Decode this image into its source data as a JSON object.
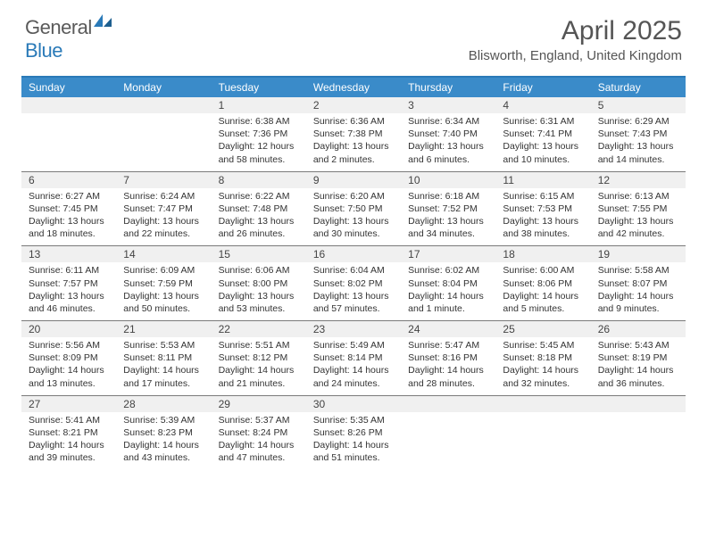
{
  "logo": {
    "word1": "General",
    "word2": "Blue"
  },
  "title": "April 2025",
  "location": "Blisworth, England, United Kingdom",
  "colors": {
    "header_bar": "#3a8bc9",
    "top_border": "#2a7ab8",
    "daynum_bg": "#f0f0f0",
    "week_divider": "#7a7a7a",
    "text": "#333333",
    "title_text": "#555555",
    "logo_gray": "#5a5a5a",
    "logo_blue": "#2a7ab8",
    "background": "#ffffff"
  },
  "typography": {
    "title_fontsize": 30,
    "location_fontsize": 15,
    "dayhead_fontsize": 12,
    "daynum_fontsize": 12,
    "body_fontsize": 10.5
  },
  "day_headers": [
    "Sunday",
    "Monday",
    "Tuesday",
    "Wednesday",
    "Thursday",
    "Friday",
    "Saturday"
  ],
  "weeks": [
    [
      null,
      null,
      {
        "n": "1",
        "sr": "6:38 AM",
        "ss": "7:36 PM",
        "dl": "12 hours and 58 minutes."
      },
      {
        "n": "2",
        "sr": "6:36 AM",
        "ss": "7:38 PM",
        "dl": "13 hours and 2 minutes."
      },
      {
        "n": "3",
        "sr": "6:34 AM",
        "ss": "7:40 PM",
        "dl": "13 hours and 6 minutes."
      },
      {
        "n": "4",
        "sr": "6:31 AM",
        "ss": "7:41 PM",
        "dl": "13 hours and 10 minutes."
      },
      {
        "n": "5",
        "sr": "6:29 AM",
        "ss": "7:43 PM",
        "dl": "13 hours and 14 minutes."
      }
    ],
    [
      {
        "n": "6",
        "sr": "6:27 AM",
        "ss": "7:45 PM",
        "dl": "13 hours and 18 minutes."
      },
      {
        "n": "7",
        "sr": "6:24 AM",
        "ss": "7:47 PM",
        "dl": "13 hours and 22 minutes."
      },
      {
        "n": "8",
        "sr": "6:22 AM",
        "ss": "7:48 PM",
        "dl": "13 hours and 26 minutes."
      },
      {
        "n": "9",
        "sr": "6:20 AM",
        "ss": "7:50 PM",
        "dl": "13 hours and 30 minutes."
      },
      {
        "n": "10",
        "sr": "6:18 AM",
        "ss": "7:52 PM",
        "dl": "13 hours and 34 minutes."
      },
      {
        "n": "11",
        "sr": "6:15 AM",
        "ss": "7:53 PM",
        "dl": "13 hours and 38 minutes."
      },
      {
        "n": "12",
        "sr": "6:13 AM",
        "ss": "7:55 PM",
        "dl": "13 hours and 42 minutes."
      }
    ],
    [
      {
        "n": "13",
        "sr": "6:11 AM",
        "ss": "7:57 PM",
        "dl": "13 hours and 46 minutes."
      },
      {
        "n": "14",
        "sr": "6:09 AM",
        "ss": "7:59 PM",
        "dl": "13 hours and 50 minutes."
      },
      {
        "n": "15",
        "sr": "6:06 AM",
        "ss": "8:00 PM",
        "dl": "13 hours and 53 minutes."
      },
      {
        "n": "16",
        "sr": "6:04 AM",
        "ss": "8:02 PM",
        "dl": "13 hours and 57 minutes."
      },
      {
        "n": "17",
        "sr": "6:02 AM",
        "ss": "8:04 PM",
        "dl": "14 hours and 1 minute."
      },
      {
        "n": "18",
        "sr": "6:00 AM",
        "ss": "8:06 PM",
        "dl": "14 hours and 5 minutes."
      },
      {
        "n": "19",
        "sr": "5:58 AM",
        "ss": "8:07 PM",
        "dl": "14 hours and 9 minutes."
      }
    ],
    [
      {
        "n": "20",
        "sr": "5:56 AM",
        "ss": "8:09 PM",
        "dl": "14 hours and 13 minutes."
      },
      {
        "n": "21",
        "sr": "5:53 AM",
        "ss": "8:11 PM",
        "dl": "14 hours and 17 minutes."
      },
      {
        "n": "22",
        "sr": "5:51 AM",
        "ss": "8:12 PM",
        "dl": "14 hours and 21 minutes."
      },
      {
        "n": "23",
        "sr": "5:49 AM",
        "ss": "8:14 PM",
        "dl": "14 hours and 24 minutes."
      },
      {
        "n": "24",
        "sr": "5:47 AM",
        "ss": "8:16 PM",
        "dl": "14 hours and 28 minutes."
      },
      {
        "n": "25",
        "sr": "5:45 AM",
        "ss": "8:18 PM",
        "dl": "14 hours and 32 minutes."
      },
      {
        "n": "26",
        "sr": "5:43 AM",
        "ss": "8:19 PM",
        "dl": "14 hours and 36 minutes."
      }
    ],
    [
      {
        "n": "27",
        "sr": "5:41 AM",
        "ss": "8:21 PM",
        "dl": "14 hours and 39 minutes."
      },
      {
        "n": "28",
        "sr": "5:39 AM",
        "ss": "8:23 PM",
        "dl": "14 hours and 43 minutes."
      },
      {
        "n": "29",
        "sr": "5:37 AM",
        "ss": "8:24 PM",
        "dl": "14 hours and 47 minutes."
      },
      {
        "n": "30",
        "sr": "5:35 AM",
        "ss": "8:26 PM",
        "dl": "14 hours and 51 minutes."
      },
      null,
      null,
      null
    ]
  ],
  "labels": {
    "sunrise": "Sunrise:",
    "sunset": "Sunset:",
    "daylight": "Daylight:"
  }
}
